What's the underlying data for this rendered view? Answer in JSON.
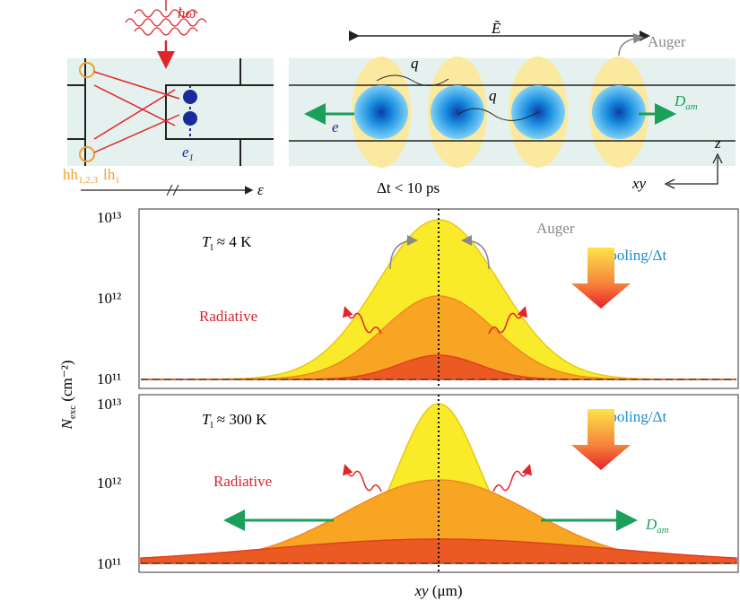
{
  "top_left": {
    "photon": "ħω",
    "hh": "hh",
    "hh_sub": "1,2,3",
    "lh": "lh",
    "lh_sub": "1",
    "e": "e",
    "e_sub": "1",
    "energy_axis": "ε"
  },
  "top_right": {
    "field": "Ẽ",
    "auger": "Auger",
    "q1": "q",
    "q2": "q",
    "electron": "e",
    "d": "D",
    "d_sub": "am",
    "z": "z",
    "xy": "xy",
    "time": "Δt < 10 ps"
  },
  "panel_low_t": {
    "t": "T",
    "t_sub": "l",
    "t_rest": " ≈ 4 K",
    "auger": "Auger",
    "cooling": "Cooling/Δt",
    "radiative": "Radiative",
    "yticks": [
      "10¹³",
      "10¹²",
      "10¹¹"
    ]
  },
  "panel_room_t": {
    "t": "T",
    "t_sub": "l",
    "t_rest": " ≈ 300 K",
    "cooling": "Cooling/Δt",
    "radiative": "Radiative",
    "d": "D",
    "d_sub": "am",
    "yticks": [
      "10¹³",
      "10¹²",
      "10¹¹"
    ]
  },
  "y_label": {
    "n": "N",
    "sub": "exc",
    "unit": " (cm⁻²)"
  },
  "x_label": {
    "xy": "xy",
    "unit": " (μm)"
  }
}
